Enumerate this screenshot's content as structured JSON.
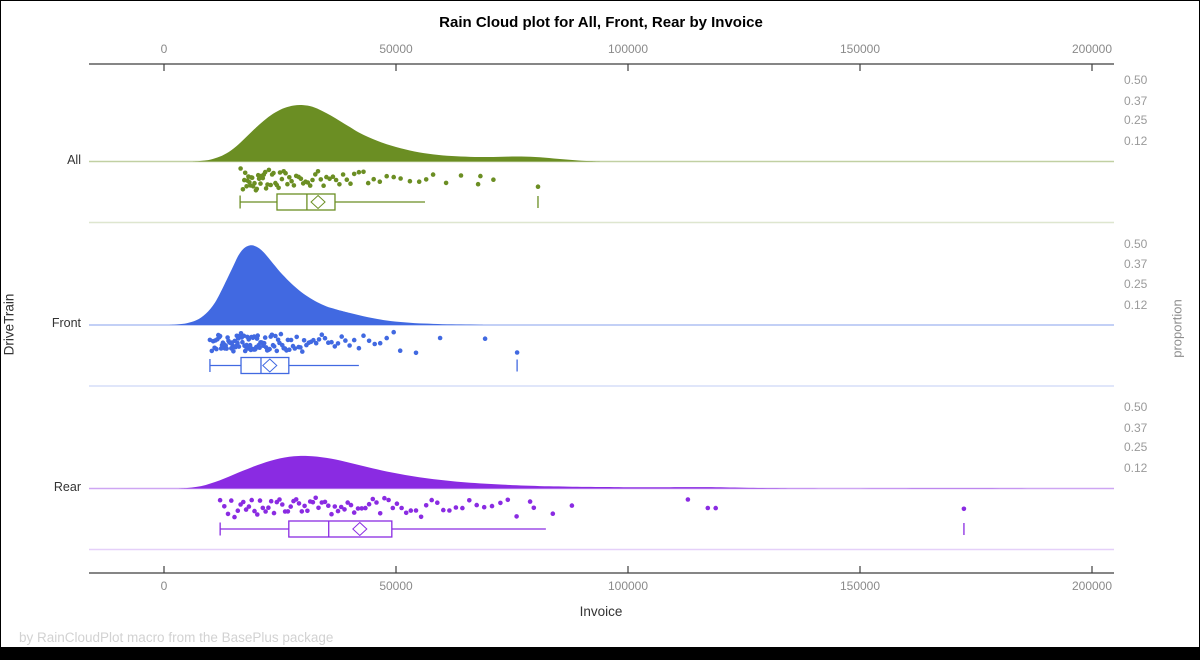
{
  "title": "Rain Cloud plot for All, Front, Rear by Invoice",
  "footer": "by RainCloudPlot macro from the BasePlus package",
  "x_axis": {
    "label": "Invoice",
    "ticks": [
      "0",
      "50000",
      "100000",
      "150000",
      "200000"
    ],
    "tick_values": [
      0,
      50000,
      100000,
      150000,
      200000
    ]
  },
  "y_axis_left": {
    "label": "DriveTrain",
    "categories": [
      "All",
      "Front",
      "Rear"
    ]
  },
  "y_axis_right": {
    "label": "proportion",
    "ticks": [
      "0.50",
      "0.37",
      "0.25",
      "0.12"
    ]
  },
  "chart_data": {
    "type": "raincloud",
    "xlabel": "Invoice",
    "ylabel_left": "DriveTrain",
    "ylabel_right": "proportion",
    "xlim": [
      -16000,
      205000
    ],
    "proportion_ticks": [
      0.5,
      0.37,
      0.25,
      0.12
    ],
    "groups": [
      {
        "name": "All",
        "color": "#6B8E23",
        "box": {
          "whisker_min": 16400,
          "q1": 24350,
          "median": 30800,
          "q3": 36850,
          "mean": 33200,
          "whisker_max": 56250,
          "outliers": [
            80600
          ]
        },
        "density": [
          [
            6000,
            0
          ],
          [
            8000,
            0.004
          ],
          [
            10000,
            0.012
          ],
          [
            12000,
            0.03
          ],
          [
            14000,
            0.06
          ],
          [
            16000,
            0.105
          ],
          [
            18000,
            0.16
          ],
          [
            20000,
            0.215
          ],
          [
            22000,
            0.265
          ],
          [
            24000,
            0.305
          ],
          [
            26000,
            0.333
          ],
          [
            28000,
            0.348
          ],
          [
            30000,
            0.35
          ],
          [
            32000,
            0.34
          ],
          [
            34000,
            0.315
          ],
          [
            36000,
            0.285
          ],
          [
            38000,
            0.25
          ],
          [
            40000,
            0.215
          ],
          [
            42000,
            0.18
          ],
          [
            44000,
            0.152
          ],
          [
            46000,
            0.128
          ],
          [
            48000,
            0.107
          ],
          [
            50000,
            0.09
          ],
          [
            52000,
            0.075
          ],
          [
            54000,
            0.062
          ],
          [
            56000,
            0.052
          ],
          [
            58000,
            0.044
          ],
          [
            60000,
            0.038
          ],
          [
            62000,
            0.034
          ],
          [
            64000,
            0.031
          ],
          [
            66000,
            0.029
          ],
          [
            68000,
            0.028
          ],
          [
            70000,
            0.028
          ],
          [
            72000,
            0.029
          ],
          [
            74000,
            0.03
          ],
          [
            76000,
            0.031
          ],
          [
            78000,
            0.03
          ],
          [
            80000,
            0.028
          ],
          [
            82000,
            0.024
          ],
          [
            84000,
            0.019
          ],
          [
            86000,
            0.014
          ],
          [
            88000,
            0.009
          ],
          [
            90000,
            0.005
          ],
          [
            92000,
            0.002
          ],
          [
            94000,
            0
          ]
        ],
        "points": [
          16500,
          17000,
          17300,
          17500,
          17800,
          18000,
          18200,
          18400,
          18600,
          18800,
          19000,
          19200,
          19500,
          19800,
          20000,
          20300,
          20500,
          20800,
          21000,
          21300,
          21500,
          21800,
          22000,
          22300,
          22600,
          23000,
          23300,
          23600,
          24000,
          24300,
          24700,
          25000,
          25400,
          25800,
          26200,
          26600,
          27000,
          27500,
          28000,
          28500,
          29000,
          29500,
          30000,
          30500,
          31000,
          31500,
          32000,
          32600,
          33200,
          33800,
          34400,
          35000,
          35700,
          36400,
          37100,
          37800,
          38600,
          39400,
          40200,
          41000,
          42000,
          43000,
          44000,
          45200,
          46500,
          48000,
          49500,
          51000,
          53000,
          55000,
          56500,
          58000,
          60800,
          64000,
          67700,
          68200,
          71000,
          80600
        ]
      },
      {
        "name": "Front",
        "color": "#4169E1",
        "box": {
          "whisker_min": 9900,
          "q1": 16600,
          "median": 20900,
          "q3": 26900,
          "mean": 22800,
          "whisker_max": 42000,
          "outliers": [
            76100
          ]
        },
        "density": [
          [
            1000,
            0
          ],
          [
            3000,
            0.004
          ],
          [
            5000,
            0.012
          ],
          [
            7000,
            0.03
          ],
          [
            9000,
            0.07
          ],
          [
            11000,
            0.14
          ],
          [
            13000,
            0.25
          ],
          [
            15000,
            0.37
          ],
          [
            16000,
            0.43
          ],
          [
            17000,
            0.47
          ],
          [
            18000,
            0.49
          ],
          [
            19000,
            0.495
          ],
          [
            20000,
            0.485
          ],
          [
            21000,
            0.465
          ],
          [
            22000,
            0.435
          ],
          [
            23000,
            0.4
          ],
          [
            24000,
            0.365
          ],
          [
            25000,
            0.33
          ],
          [
            26000,
            0.3
          ],
          [
            27000,
            0.27
          ],
          [
            28000,
            0.243
          ],
          [
            29000,
            0.218
          ],
          [
            30000,
            0.196
          ],
          [
            31000,
            0.176
          ],
          [
            32000,
            0.158
          ],
          [
            33000,
            0.142
          ],
          [
            34000,
            0.128
          ],
          [
            35000,
            0.116
          ],
          [
            36000,
            0.106
          ],
          [
            37000,
            0.098
          ],
          [
            38000,
            0.09
          ],
          [
            40000,
            0.075
          ],
          [
            42000,
            0.061
          ],
          [
            44000,
            0.048
          ],
          [
            46000,
            0.037
          ],
          [
            48000,
            0.028
          ],
          [
            50000,
            0.021
          ],
          [
            52000,
            0.016
          ],
          [
            54000,
            0.012
          ],
          [
            56000,
            0.009
          ],
          [
            58000,
            0.007
          ],
          [
            60000,
            0.005
          ],
          [
            62000,
            0.004
          ],
          [
            64000,
            0.003
          ],
          [
            66000,
            0.002
          ],
          [
            68000,
            0.001
          ],
          [
            70000,
            0
          ]
        ],
        "points": [
          9900,
          10300,
          10600,
          10900,
          11100,
          11300,
          11500,
          11700,
          11900,
          12100,
          12300,
          12500,
          12700,
          12900,
          13100,
          13300,
          13500,
          13700,
          13900,
          14100,
          14300,
          14500,
          14650,
          14800,
          14950,
          15100,
          15250,
          15400,
          15550,
          15700,
          15850,
          16000,
          16150,
          16300,
          16450,
          16600,
          16750,
          16900,
          17050,
          17200,
          17350,
          17500,
          17650,
          17800,
          17950,
          18100,
          18250,
          18400,
          18550,
          18700,
          18850,
          19000,
          19150,
          19300,
          19450,
          19600,
          19750,
          19900,
          20050,
          20200,
          20400,
          20600,
          20800,
          21000,
          21200,
          21400,
          21600,
          21800,
          22000,
          22250,
          22500,
          22750,
          23000,
          23250,
          23500,
          23750,
          24000,
          24300,
          24600,
          24900,
          25200,
          25500,
          25800,
          26100,
          26400,
          26700,
          27000,
          27400,
          27800,
          28200,
          28600,
          29000,
          29400,
          29800,
          30200,
          30700,
          31200,
          31700,
          32200,
          32800,
          33400,
          34000,
          34700,
          35400,
          36100,
          36800,
          37500,
          38300,
          39100,
          40000,
          41000,
          42000,
          43000,
          44200,
          45400,
          46600,
          48000,
          49500,
          50900,
          54300,
          59500,
          69200,
          76100
        ]
      },
      {
        "name": "Rear",
        "color": "#8A2BE2",
        "box": {
          "whisker_min": 12100,
          "q1": 26900,
          "median": 35500,
          "q3": 49100,
          "mean": 42200,
          "whisker_max": 82300,
          "outliers": [
            172400
          ]
        },
        "density": [
          [
            3000,
            0
          ],
          [
            5000,
            0.003
          ],
          [
            7000,
            0.01
          ],
          [
            9000,
            0.022
          ],
          [
            11000,
            0.04
          ],
          [
            13000,
            0.062
          ],
          [
            15000,
            0.086
          ],
          [
            17000,
            0.11
          ],
          [
            19000,
            0.133
          ],
          [
            21000,
            0.154
          ],
          [
            23000,
            0.172
          ],
          [
            25000,
            0.187
          ],
          [
            27000,
            0.197
          ],
          [
            29000,
            0.202
          ],
          [
            31000,
            0.202
          ],
          [
            33000,
            0.198
          ],
          [
            35000,
            0.19
          ],
          [
            37000,
            0.18
          ],
          [
            39000,
            0.167
          ],
          [
            41000,
            0.153
          ],
          [
            43000,
            0.139
          ],
          [
            45000,
            0.125
          ],
          [
            47000,
            0.112
          ],
          [
            49000,
            0.1
          ],
          [
            51000,
            0.089
          ],
          [
            53000,
            0.079
          ],
          [
            55000,
            0.07
          ],
          [
            57000,
            0.062
          ],
          [
            59000,
            0.055
          ],
          [
            61000,
            0.049
          ],
          [
            63000,
            0.043
          ],
          [
            65000,
            0.038
          ],
          [
            67000,
            0.034
          ],
          [
            69000,
            0.03
          ],
          [
            71000,
            0.027
          ],
          [
            73000,
            0.024
          ],
          [
            75000,
            0.021
          ],
          [
            77000,
            0.019
          ],
          [
            79000,
            0.017
          ],
          [
            81000,
            0.015
          ],
          [
            83000,
            0.014
          ],
          [
            85000,
            0.013
          ],
          [
            87000,
            0.012
          ],
          [
            89000,
            0.011
          ],
          [
            91000,
            0.01
          ],
          [
            93000,
            0.0095
          ],
          [
            95000,
            0.009
          ],
          [
            97000,
            0.0085
          ],
          [
            99000,
            0.008
          ],
          [
            101000,
            0.0078
          ],
          [
            103000,
            0.0076
          ],
          [
            105000,
            0.0076
          ],
          [
            107000,
            0.0078
          ],
          [
            109000,
            0.008
          ],
          [
            111000,
            0.0082
          ],
          [
            113000,
            0.0084
          ],
          [
            115000,
            0.0084
          ],
          [
            117000,
            0.0082
          ],
          [
            119000,
            0.0078
          ],
          [
            121000,
            0.007
          ],
          [
            123000,
            0.006
          ],
          [
            125000,
            0.005
          ],
          [
            127000,
            0.004
          ],
          [
            129000,
            0.003
          ],
          [
            131000,
            0.0022
          ],
          [
            133000,
            0.0016
          ],
          [
            135000,
            0.001
          ],
          [
            138000,
            0.0006
          ],
          [
            141000,
            0.0004
          ],
          [
            145000,
            0.0003
          ],
          [
            150000,
            0.0003
          ],
          [
            155000,
            0.0005
          ],
          [
            160000,
            0.0009
          ],
          [
            164000,
            0.0013
          ],
          [
            168000,
            0.0016
          ],
          [
            171000,
            0.0017
          ],
          [
            174000,
            0.0016
          ],
          [
            177000,
            0.0013
          ],
          [
            180000,
            0.0009
          ],
          [
            183000,
            0.0005
          ],
          [
            186000,
            0.0002
          ],
          [
            189000,
            0
          ]
        ],
        "points": [
          12100,
          13000,
          13800,
          14500,
          15200,
          15900,
          16500,
          17100,
          17700,
          18300,
          18900,
          19500,
          20100,
          20700,
          21300,
          21900,
          22500,
          23100,
          23700,
          24300,
          24900,
          25500,
          26100,
          26700,
          27300,
          27900,
          28500,
          29100,
          29700,
          30300,
          30900,
          31500,
          32100,
          32700,
          33300,
          34000,
          34700,
          35400,
          36100,
          36800,
          37500,
          38200,
          38900,
          39600,
          40300,
          41000,
          41800,
          42600,
          43400,
          44200,
          45000,
          45800,
          46600,
          47500,
          48400,
          49300,
          50200,
          51200,
          52200,
          53200,
          54300,
          55400,
          56500,
          57700,
          58900,
          60200,
          61500,
          62900,
          64300,
          65800,
          67400,
          69000,
          70700,
          72500,
          74100,
          76000,
          78900,
          79700,
          83800,
          87900,
          112900,
          117200,
          118900,
          172400
        ]
      }
    ]
  }
}
